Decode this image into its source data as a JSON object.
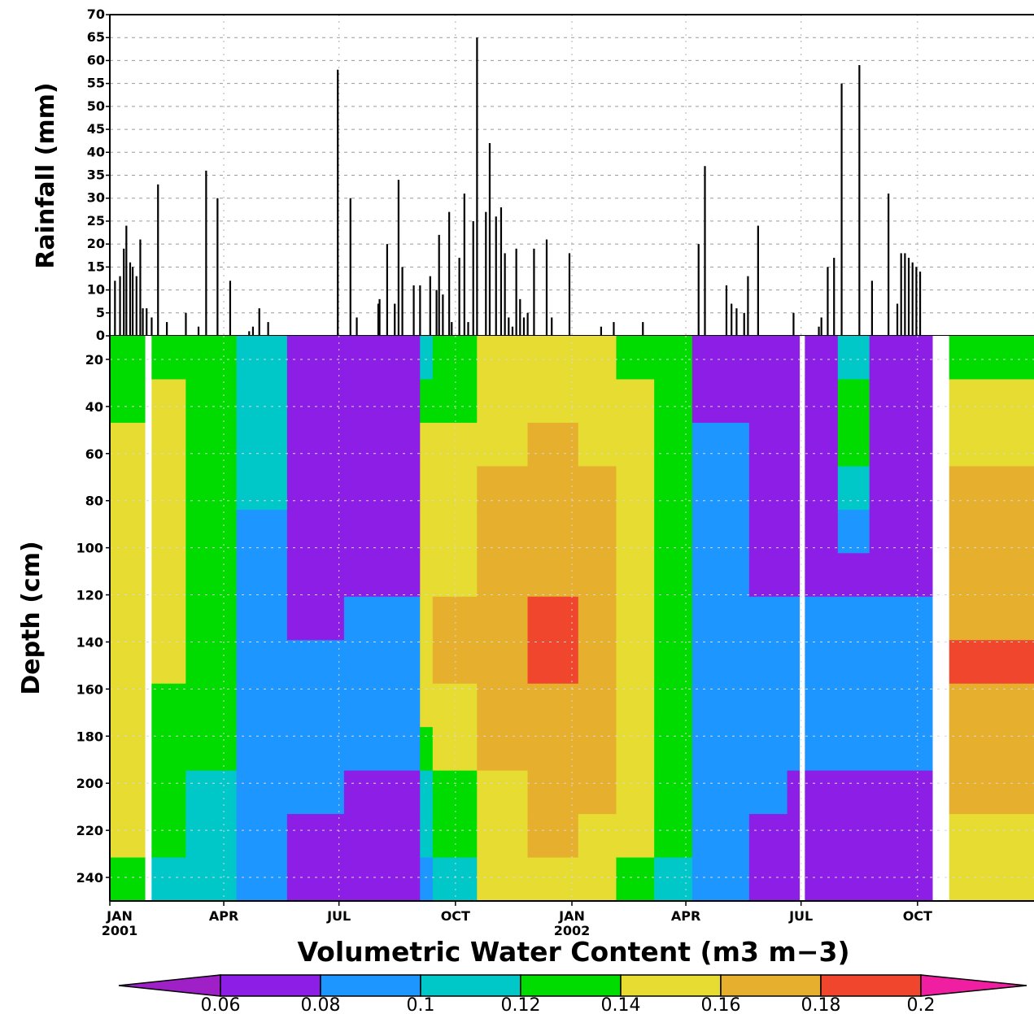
{
  "chart_data": [
    {
      "type": "bar",
      "ylabel": "Rainfall (mm)",
      "ylim": [
        0,
        70
      ],
      "yticks": [
        0,
        5,
        10,
        15,
        20,
        25,
        30,
        35,
        40,
        45,
        50,
        55,
        60,
        65,
        70
      ],
      "x_range_days": [
        0,
        730
      ],
      "grid": true,
      "series": [
        {
          "days": [
            4,
            8,
            11,
            13,
            16,
            18,
            21,
            24,
            26,
            29,
            33,
            38,
            45,
            60,
            70,
            76,
            85,
            95,
            110,
            113,
            118,
            125,
            180,
            190,
            195,
            212,
            213,
            219,
            225,
            228,
            231,
            240,
            245,
            253,
            258,
            260,
            263,
            268,
            270,
            276,
            280,
            283,
            287,
            290,
            297,
            300,
            305,
            309,
            312,
            315,
            318,
            321,
            324,
            327,
            330,
            335,
            345,
            349,
            363,
            388,
            398,
            421,
            465,
            470,
            487,
            491,
            495,
            501,
            504,
            512,
            540,
            560,
            562,
            567,
            572,
            578,
            592,
            602,
            615,
            622,
            625,
            628,
            631,
            634,
            637,
            640
          ],
          "values": [
            12,
            13,
            19,
            24,
            16,
            15,
            13,
            21,
            6,
            6,
            4,
            33,
            3,
            5,
            2,
            36,
            30,
            12,
            1,
            2,
            6,
            3,
            58,
            30,
            4,
            7,
            8,
            20,
            7,
            34,
            15,
            11,
            11,
            13,
            10,
            22,
            9,
            27,
            3,
            17,
            31,
            3,
            25,
            65,
            27,
            42,
            26,
            28,
            18,
            4,
            2,
            19,
            8,
            4,
            5,
            19,
            21,
            4,
            18,
            2,
            3,
            3,
            20,
            37,
            11,
            7,
            6,
            5,
            13,
            24,
            5,
            2,
            4,
            15,
            17,
            55,
            59,
            12,
            31,
            7,
            18,
            18,
            17,
            16,
            15,
            14
          ]
        }
      ]
    },
    {
      "type": "heatmap",
      "ylabel": "Depth (cm)",
      "ylim": [
        250,
        10
      ],
      "yticks": [
        20,
        40,
        60,
        80,
        100,
        120,
        140,
        160,
        180,
        200,
        220,
        240
      ],
      "xticks": [
        {
          "day": 0,
          "label": "JAN",
          "year": "2001"
        },
        {
          "day": 90,
          "label": "APR",
          "year": ""
        },
        {
          "day": 181,
          "label": "JUL",
          "year": ""
        },
        {
          "day": 273,
          "label": "OCT",
          "year": ""
        },
        {
          "day": 365,
          "label": "JAN",
          "year": "2002"
        },
        {
          "day": 455,
          "label": "APR",
          "year": ""
        },
        {
          "day": 546,
          "label": "JUL",
          "year": ""
        },
        {
          "day": 638,
          "label": "OCT",
          "year": ""
        }
      ],
      "x_range_days": [
        0,
        730
      ],
      "grid": true,
      "description_of_pattern_by_day_segments": [
        {
          "day_start": 0,
          "day_end": 28,
          "profile": [
            0.12,
            0.13,
            0.14,
            0.15,
            0.15,
            0.15,
            0.15,
            0.14,
            0.14,
            0.14,
            0.14,
            0.14,
            0.13
          ]
        },
        {
          "day_start": 28,
          "day_end": 33,
          "profile": null,
          "gap": true
        },
        {
          "day_start": 33,
          "day_end": 60,
          "profile": [
            0.13,
            0.14,
            0.14,
            0.14,
            0.15,
            0.15,
            0.15,
            0.14,
            0.13,
            0.13,
            0.12,
            0.12,
            0.11
          ]
        },
        {
          "day_start": 60,
          "day_end": 100,
          "profile": [
            0.12,
            0.12,
            0.12,
            0.13,
            0.13,
            0.13,
            0.13,
            0.13,
            0.12,
            0.12,
            0.11,
            0.11,
            0.11
          ]
        },
        {
          "day_start": 100,
          "day_end": 140,
          "profile": [
            0.1,
            0.1,
            0.1,
            0.1,
            0.09,
            0.09,
            0.09,
            0.09,
            0.09,
            0.09,
            0.09,
            0.09,
            0.09
          ]
        },
        {
          "day_start": 140,
          "day_end": 185,
          "profile": [
            0.07,
            0.07,
            0.07,
            0.07,
            0.07,
            0.07,
            0.07,
            0.09,
            0.09,
            0.09,
            0.09,
            0.07,
            0.07
          ]
        },
        {
          "day_start": 185,
          "day_end": 245,
          "profile": [
            0.07,
            0.07,
            0.07,
            0.07,
            0.07,
            0.07,
            0.09,
            0.09,
            0.09,
            0.09,
            0.07,
            0.07,
            0.07
          ]
        },
        {
          "day_start": 245,
          "day_end": 255,
          "profile": [
            0.11,
            0.13,
            0.14,
            0.15,
            0.15,
            0.15,
            0.15,
            0.15,
            0.15,
            0.13,
            0.11,
            0.11,
            0.09
          ]
        },
        {
          "day_start": 255,
          "day_end": 290,
          "profile": [
            0.13,
            0.13,
            0.14,
            0.15,
            0.15,
            0.15,
            0.16,
            0.16,
            0.15,
            0.15,
            0.13,
            0.13,
            0.11
          ]
        },
        {
          "day_start": 290,
          "day_end": 330,
          "profile": [
            0.14,
            0.15,
            0.15,
            0.16,
            0.17,
            0.17,
            0.17,
            0.17,
            0.17,
            0.16,
            0.15,
            0.15,
            0.14
          ]
        },
        {
          "day_start": 330,
          "day_end": 370,
          "profile": [
            0.15,
            0.15,
            0.16,
            0.17,
            0.17,
            0.17,
            0.18,
            0.18,
            0.17,
            0.17,
            0.16,
            0.16,
            0.15
          ]
        },
        {
          "day_start": 370,
          "day_end": 400,
          "profile": [
            0.14,
            0.14,
            0.15,
            0.16,
            0.16,
            0.16,
            0.17,
            0.17,
            0.17,
            0.16,
            0.16,
            0.15,
            0.15
          ]
        },
        {
          "day_start": 400,
          "day_end": 430,
          "profile": [
            0.13,
            0.14,
            0.14,
            0.14,
            0.15,
            0.15,
            0.15,
            0.15,
            0.15,
            0.14,
            0.14,
            0.14,
            0.13
          ]
        },
        {
          "day_start": 430,
          "day_end": 460,
          "profile": [
            0.12,
            0.12,
            0.13,
            0.13,
            0.13,
            0.13,
            0.13,
            0.13,
            0.13,
            0.12,
            0.12,
            0.12,
            0.11
          ]
        },
        {
          "day_start": 460,
          "day_end": 505,
          "profile": [
            0.07,
            0.07,
            0.09,
            0.09,
            0.09,
            0.09,
            0.09,
            0.09,
            0.09,
            0.09,
            0.09,
            0.09,
            0.09
          ]
        },
        {
          "day_start": 505,
          "day_end": 535,
          "profile": [
            0.07,
            0.07,
            0.07,
            0.07,
            0.07,
            0.07,
            0.09,
            0.09,
            0.09,
            0.09,
            0.09,
            0.07,
            0.07
          ]
        },
        {
          "day_start": 535,
          "day_end": 545,
          "profile": [
            0.07,
            0.07,
            0.07,
            0.07,
            0.07,
            0.07,
            0.09,
            0.09,
            0.09,
            0.09,
            0.07,
            0.07,
            0.07
          ]
        },
        {
          "day_start": 545,
          "day_end": 549,
          "profile": null,
          "gap": true
        },
        {
          "day_start": 549,
          "day_end": 575,
          "profile": [
            0.07,
            0.07,
            0.07,
            0.07,
            0.07,
            0.07,
            0.09,
            0.09,
            0.09,
            0.09,
            0.07,
            0.07,
            0.07
          ]
        },
        {
          "day_start": 575,
          "day_end": 600,
          "profile": [
            0.11,
            0.13,
            0.13,
            0.11,
            0.09,
            0.07,
            0.09,
            0.09,
            0.09,
            0.09,
            0.07,
            0.07,
            0.07
          ]
        },
        {
          "day_start": 600,
          "day_end": 650,
          "profile": [
            0.07,
            0.07,
            0.07,
            0.07,
            0.07,
            0.07,
            0.09,
            0.09,
            0.09,
            0.09,
            0.07,
            0.07,
            0.07
          ]
        },
        {
          "day_start": 650,
          "day_end": 663,
          "profile": null,
          "gap": true
        },
        {
          "day_start": 663,
          "day_end": 730,
          "profile": [
            0.13,
            0.14,
            0.15,
            0.16,
            0.16,
            0.17,
            0.17,
            0.18,
            0.17,
            0.17,
            0.16,
            0.15,
            0.14
          ]
        }
      ]
    }
  ],
  "colorbar": {
    "title": "Volumetric Water Content (m3 m−3)",
    "ticks": [
      "0.06",
      "0.08",
      "0.1",
      "0.12",
      "0.14",
      "0.16",
      "0.18",
      "0.2"
    ],
    "levels": [
      0.06,
      0.08,
      0.1,
      0.12,
      0.14,
      0.16,
      0.18,
      0.2
    ],
    "colors": {
      "below": "#a020c8",
      "b0608": "#8c1ee6",
      "b0810": "#1e96ff",
      "b1012": "#00c8c8",
      "b1214": "#00dc00",
      "b1416": "#e6dc32",
      "b1618": "#e6af2d",
      "b1820": "#f0462d",
      "above": "#f01ea0"
    }
  }
}
